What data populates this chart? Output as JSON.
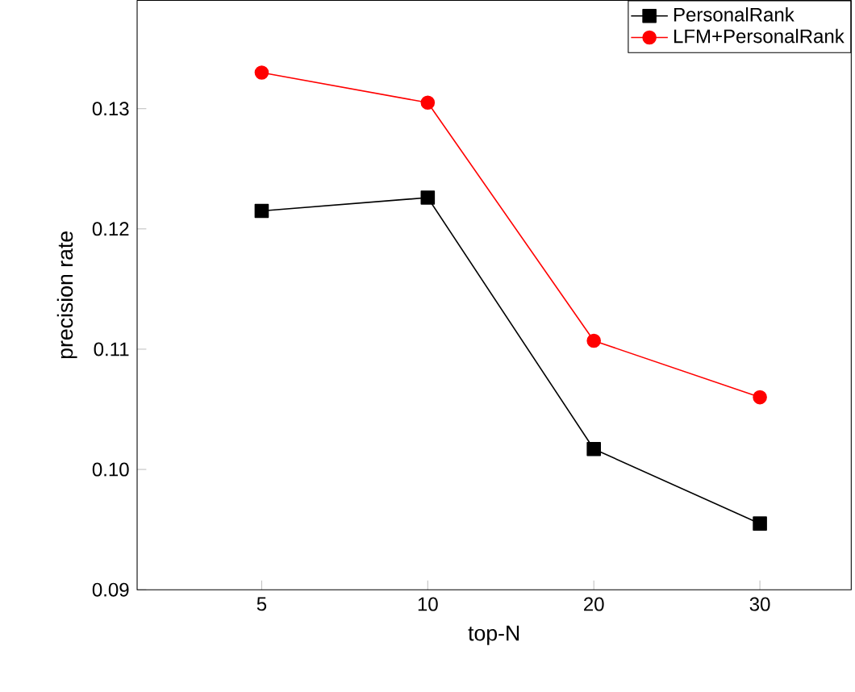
{
  "chart_data": {
    "type": "line",
    "xlabel": "top-N",
    "ylabel": "precision rate",
    "categories": [
      "5",
      "10",
      "20",
      "30"
    ],
    "series": [
      {
        "name": "PersonalRank",
        "color": "#000000",
        "marker": "square",
        "values": [
          0.1215,
          0.1226,
          0.1017,
          0.0955
        ]
      },
      {
        "name": "LFM+PersonalRank",
        "color": "#ff0000",
        "marker": "circle",
        "values": [
          0.133,
          0.1305,
          0.1107,
          0.106
        ]
      }
    ],
    "ylim": [
      0.09,
      0.139
    ],
    "yticks": [
      0.09,
      {
        "value": 0.1,
        "label": "0.10"
      },
      0.11,
      0.12,
      0.13
    ],
    "legend": "top right",
    "grid": false,
    "line_style": "solid"
  }
}
